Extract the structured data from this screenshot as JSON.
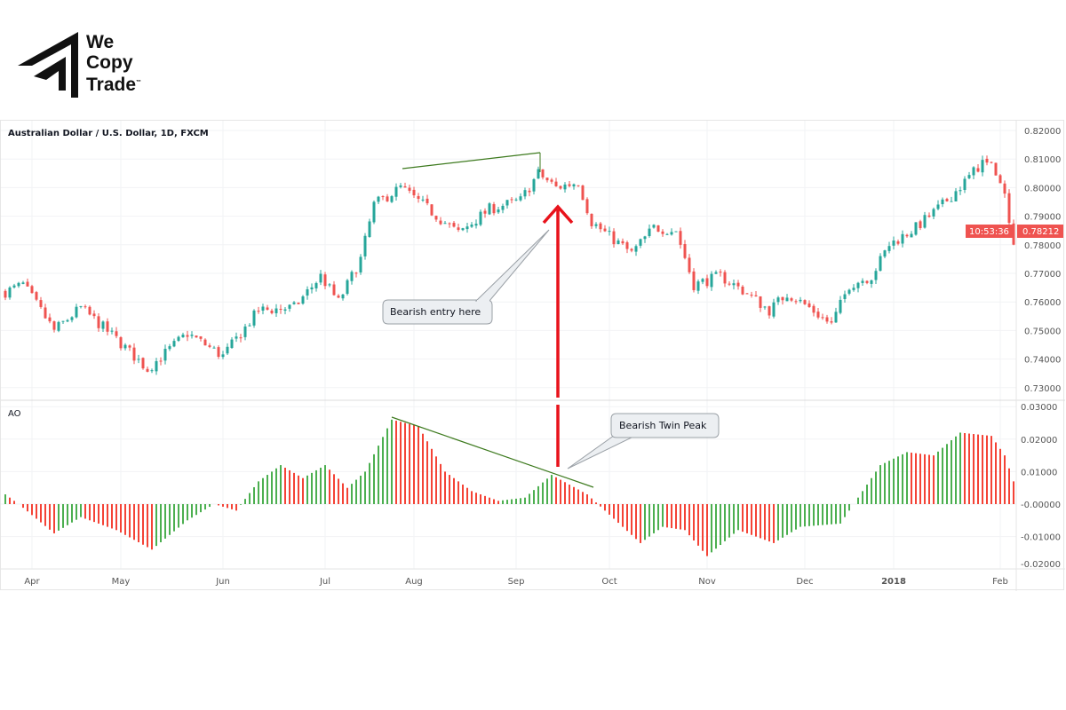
{
  "brand": {
    "name_line1": "We",
    "name_line2": "Copy",
    "name_line3": "Trade",
    "tm": "™"
  },
  "chart_data": {
    "type": "candlestick+histogram",
    "title": "Australian Dollar / U.S. Dollar, 1D, FXCM",
    "price_axis": {
      "ticks": [
        "0.82000",
        "0.81000",
        "0.80000",
        "0.79000",
        "0.78000",
        "0.77000",
        "0.76000",
        "0.75000",
        "0.74000",
        "0.73000"
      ],
      "ylim": [
        0.727,
        0.823
      ]
    },
    "last_price": "0.78212",
    "countdown": "10:53:36",
    "indicator": {
      "label": "AO",
      "ticks": [
        "0.03000",
        "0.02000",
        "0.01000",
        "-0.00000",
        "-0.01000",
        "-0.02000"
      ],
      "ylim": [
        -0.021,
        0.031
      ]
    },
    "x_ticks": [
      "Apr",
      "May",
      "Jun",
      "Jul",
      "Aug",
      "Sep",
      "Oct",
      "Nov",
      "Dec",
      "2018",
      "Feb"
    ],
    "x_tick_bar_index": [
      6,
      26,
      49,
      72,
      92,
      115,
      136,
      158,
      180,
      200,
      224
    ],
    "bar_count": 228,
    "price_keyframes": [
      [
        0,
        0.7635
      ],
      [
        4,
        0.766
      ],
      [
        11,
        0.75
      ],
      [
        17,
        0.758
      ],
      [
        25,
        0.747
      ],
      [
        32,
        0.7365
      ],
      [
        41,
        0.749
      ],
      [
        49,
        0.741
      ],
      [
        57,
        0.757
      ],
      [
        65,
        0.758
      ],
      [
        71,
        0.769
      ],
      [
        75,
        0.76
      ],
      [
        80,
        0.775
      ],
      [
        83,
        0.794
      ],
      [
        89,
        0.8
      ],
      [
        94,
        0.794
      ],
      [
        102,
        0.784
      ],
      [
        109,
        0.7925
      ],
      [
        116,
        0.7955
      ],
      [
        120,
        0.805
      ],
      [
        124,
        0.8
      ],
      [
        129,
        0.802
      ],
      [
        132,
        0.788
      ],
      [
        136,
        0.783
      ],
      [
        141,
        0.777
      ],
      [
        146,
        0.786
      ],
      [
        151,
        0.785
      ],
      [
        155,
        0.766
      ],
      [
        161,
        0.769
      ],
      [
        167,
        0.763
      ],
      [
        172,
        0.757
      ],
      [
        176,
        0.763
      ],
      [
        181,
        0.758
      ],
      [
        186,
        0.752
      ],
      [
        190,
        0.766
      ],
      [
        195,
        0.769
      ],
      [
        199,
        0.78
      ],
      [
        205,
        0.786
      ],
      [
        211,
        0.794
      ],
      [
        216,
        0.802
      ],
      [
        220,
        0.809
      ],
      [
        223,
        0.806
      ],
      [
        225,
        0.797
      ],
      [
        227,
        0.782
      ]
    ],
    "ao_keyframes": [
      [
        0,
        0.003
      ],
      [
        3,
        0
      ],
      [
        11,
        -0.009
      ],
      [
        17,
        -0.004
      ],
      [
        25,
        -0.008
      ],
      [
        33,
        -0.014
      ],
      [
        41,
        -0.005
      ],
      [
        47,
        0
      ],
      [
        52,
        -0.002
      ],
      [
        57,
        0.007
      ],
      [
        62,
        0.012
      ],
      [
        67,
        0.008
      ],
      [
        72,
        0.012
      ],
      [
        77,
        0.005
      ],
      [
        81,
        0.01
      ],
      [
        87,
        0.026
      ],
      [
        93,
        0.024
      ],
      [
        99,
        0.01
      ],
      [
        105,
        0.004
      ],
      [
        111,
        0.001
      ],
      [
        117,
        0.002
      ],
      [
        123,
        0.009
      ],
      [
        131,
        0.003
      ],
      [
        135,
        -0.002
      ],
      [
        143,
        -0.012
      ],
      [
        148,
        -0.007
      ],
      [
        153,
        -0.008
      ],
      [
        158,
        -0.016
      ],
      [
        165,
        -0.008
      ],
      [
        173,
        -0.012
      ],
      [
        179,
        -0.007
      ],
      [
        188,
        -0.006
      ],
      [
        191,
        0
      ],
      [
        197,
        0.012
      ],
      [
        203,
        0.016
      ],
      [
        209,
        0.015
      ],
      [
        215,
        0.022
      ],
      [
        222,
        0.021
      ],
      [
        225,
        0.015
      ],
      [
        227,
        0.007
      ]
    ],
    "annotations": {
      "entry_label": "Bearish entry here",
      "twin_peak_label": "Bearish Twin Peak"
    },
    "colors": {
      "up": "#26a69a",
      "down": "#ef5350",
      "ao_up": "#4caf50",
      "ao_down": "#f44336",
      "trendline": "#3d7a1e",
      "arrow": "#e8121b"
    }
  }
}
